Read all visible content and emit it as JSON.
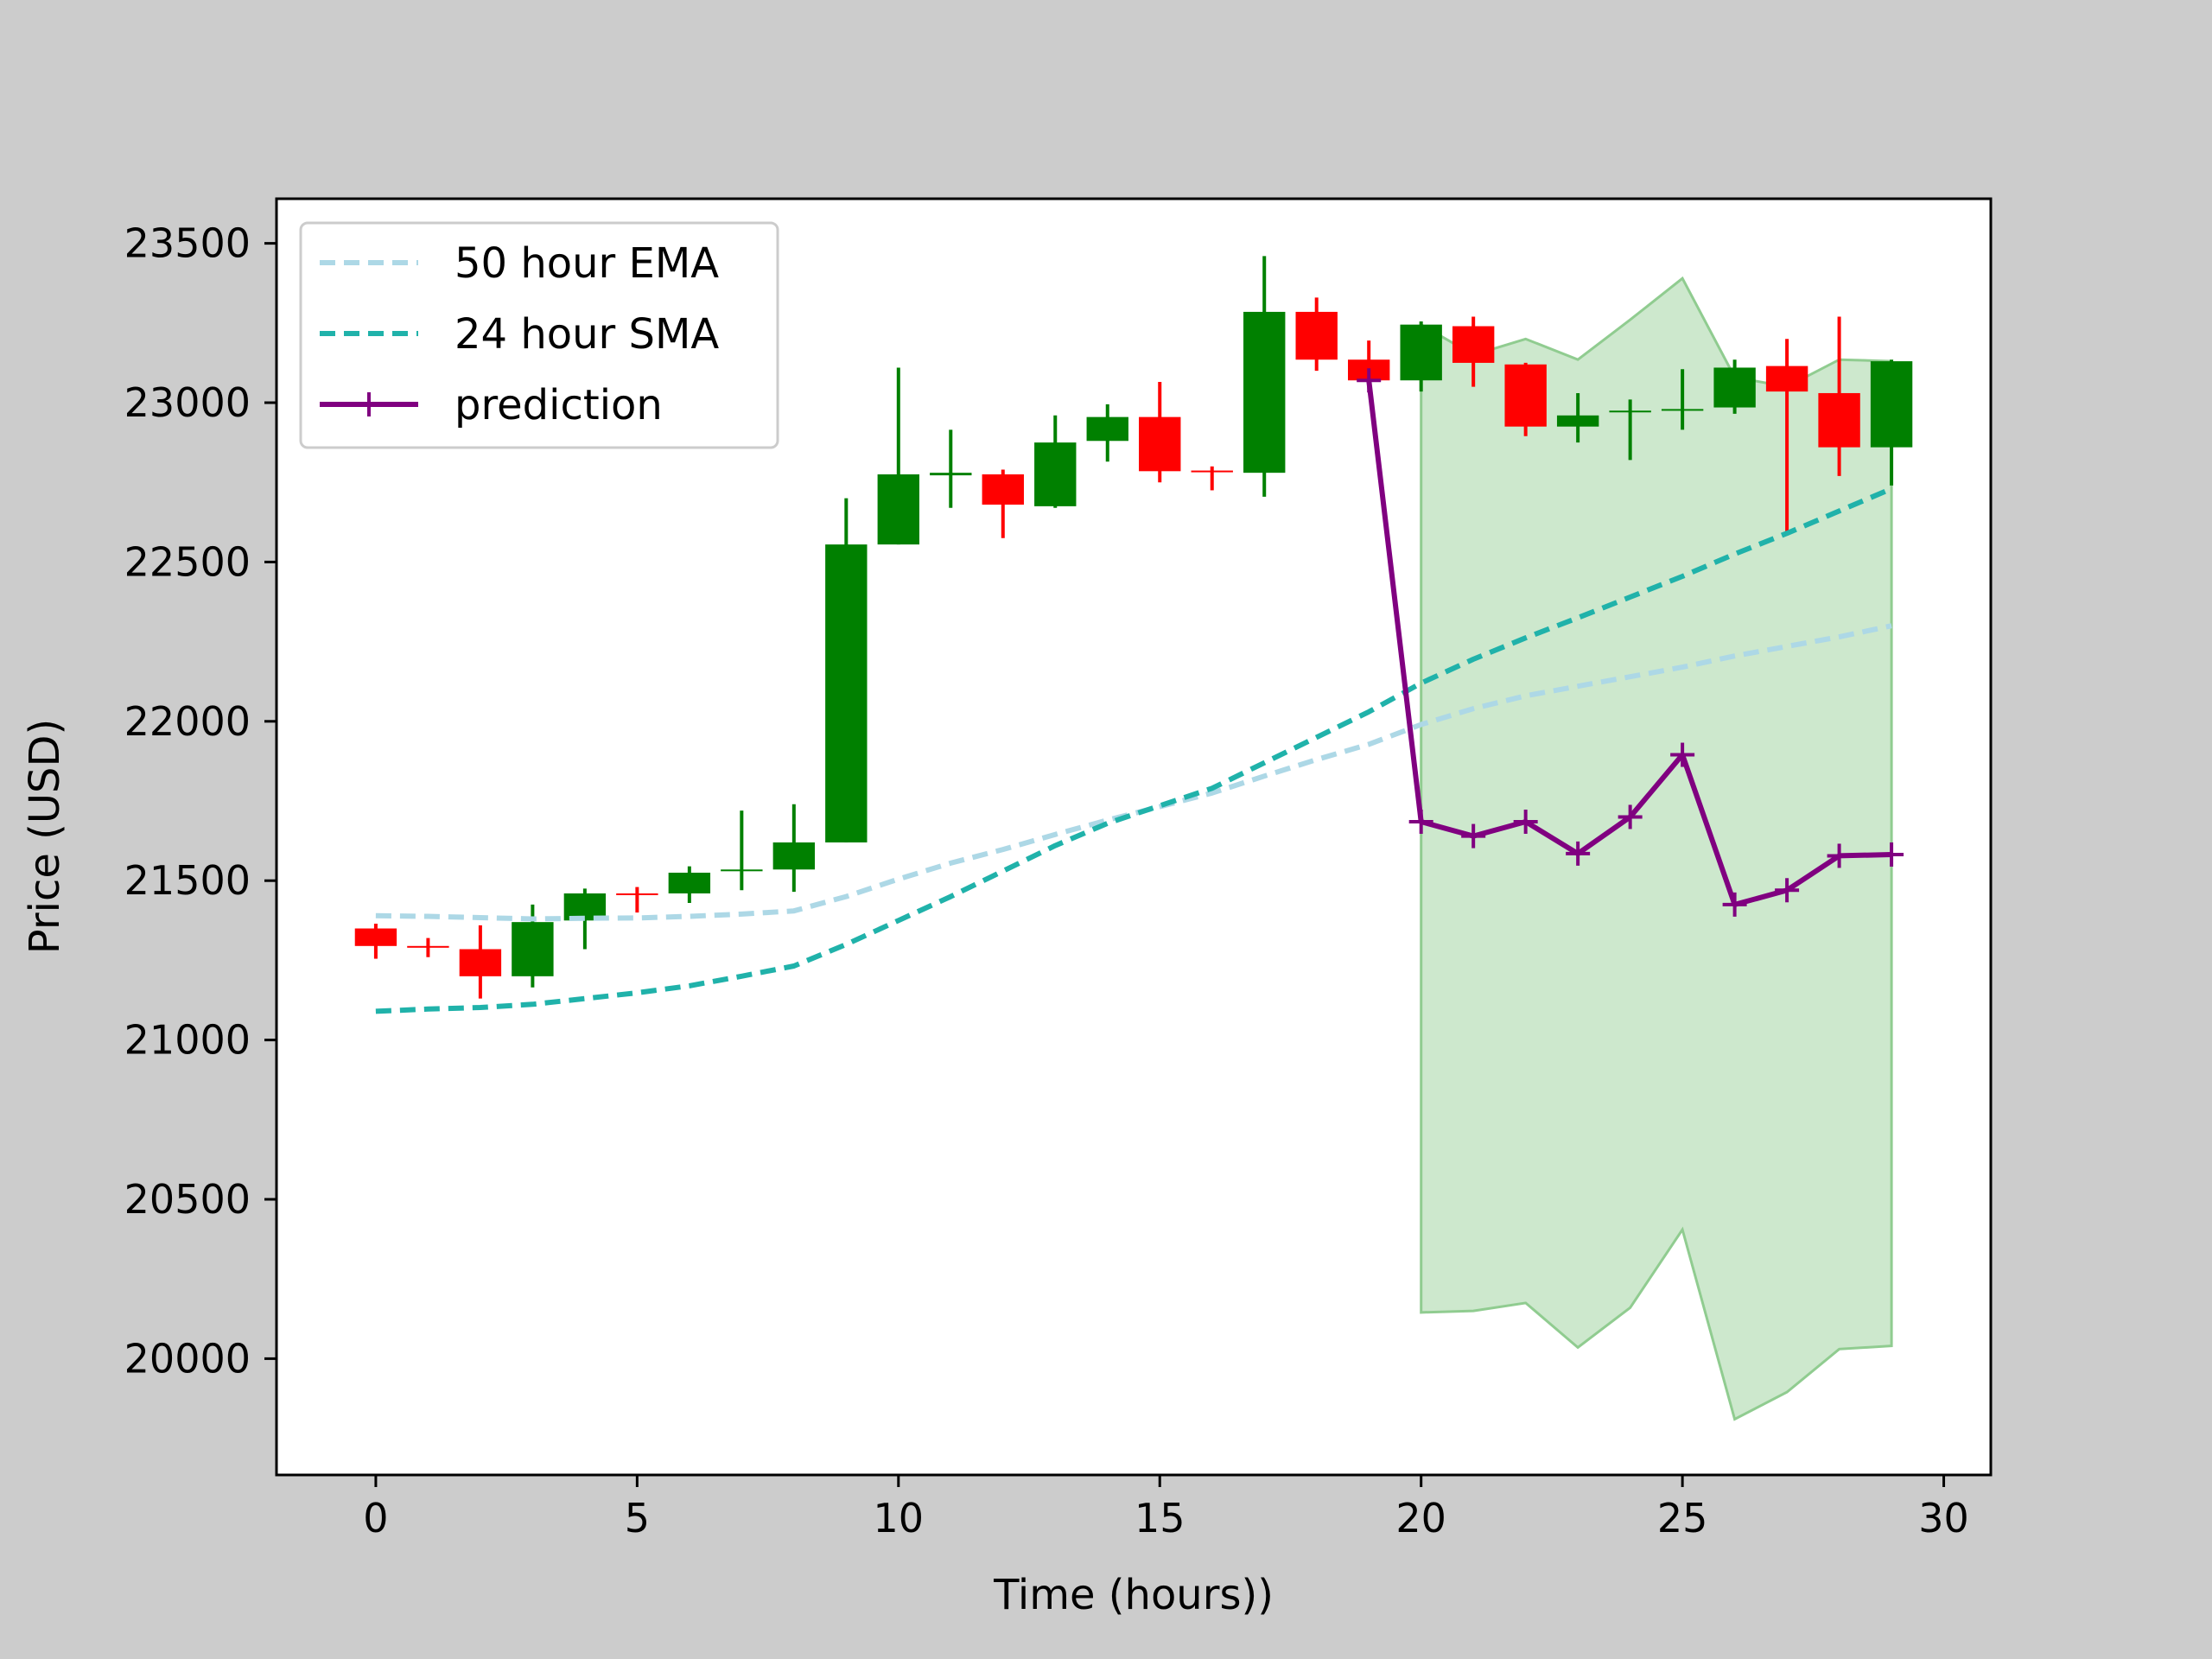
{
  "chart_data": {
    "type": "candlestick",
    "xlabel": "Time (hours))",
    "ylabel": "Price (USD)",
    "xlim": [
      -1.9,
      30.9
    ],
    "ylim": [
      19635,
      23640
    ],
    "xticks": [
      0,
      5,
      10,
      15,
      20,
      25,
      30
    ],
    "yticks": [
      20000,
      20500,
      21000,
      21500,
      22000,
      22500,
      23000,
      23500
    ],
    "legend_position": "upper-left",
    "grid": false,
    "colors": {
      "up": "#008000",
      "down": "#ff0000",
      "ema": "#add8e6",
      "sma": "#20b2aa",
      "prediction": "#800080",
      "band": "#90cc90"
    },
    "candles": [
      {
        "t": 0,
        "open": 21350,
        "high": 21365,
        "low": 21255,
        "close": 21295
      },
      {
        "t": 1,
        "open": 21295,
        "high": 21320,
        "low": 21260,
        "close": 21290
      },
      {
        "t": 2,
        "open": 21285,
        "high": 21360,
        "low": 21130,
        "close": 21200
      },
      {
        "t": 3,
        "open": 21200,
        "high": 21425,
        "low": 21165,
        "close": 21370
      },
      {
        "t": 4,
        "open": 21375,
        "high": 21475,
        "low": 21285,
        "close": 21460
      },
      {
        "t": 5,
        "open": 21460,
        "high": 21480,
        "low": 21400,
        "close": 21458
      },
      {
        "t": 6,
        "open": 21460,
        "high": 21545,
        "low": 21430,
        "close": 21525
      },
      {
        "t": 7,
        "open": 21530,
        "high": 21720,
        "low": 21470,
        "close": 21535
      },
      {
        "t": 8,
        "open": 21535,
        "high": 21740,
        "low": 21465,
        "close": 21620
      },
      {
        "t": 9,
        "open": 21620,
        "high": 22700,
        "low": 21620,
        "close": 22555
      },
      {
        "t": 10,
        "open": 22555,
        "high": 23110,
        "low": 22555,
        "close": 22775
      },
      {
        "t": 11,
        "open": 22772,
        "high": 22915,
        "low": 22670,
        "close": 22780
      },
      {
        "t": 12,
        "open": 22775,
        "high": 22790,
        "low": 22575,
        "close": 22680
      },
      {
        "t": 13,
        "open": 22675,
        "high": 22960,
        "low": 22670,
        "close": 22875
      },
      {
        "t": 14,
        "open": 22880,
        "high": 22995,
        "low": 22815,
        "close": 22955
      },
      {
        "t": 15,
        "open": 22955,
        "high": 23065,
        "low": 22750,
        "close": 22785
      },
      {
        "t": 16,
        "open": 22787,
        "high": 22800,
        "low": 22725,
        "close": 22783
      },
      {
        "t": 17,
        "open": 22780,
        "high": 23460,
        "low": 22705,
        "close": 23285
      },
      {
        "t": 18,
        "open": 23285,
        "high": 23330,
        "low": 23100,
        "close": 23135
      },
      {
        "t": 19,
        "open": 23135,
        "high": 23195,
        "low": 23065,
        "close": 23070
      },
      {
        "t": 20,
        "open": 23070,
        "high": 23255,
        "low": 23035,
        "close": 23245
      },
      {
        "t": 21,
        "open": 23240,
        "high": 23270,
        "low": 23050,
        "close": 23125
      },
      {
        "t": 22,
        "open": 23120,
        "high": 23125,
        "low": 22895,
        "close": 22925
      },
      {
        "t": 23,
        "open": 22925,
        "high": 23030,
        "low": 22875,
        "close": 22960
      },
      {
        "t": 24,
        "open": 22970,
        "high": 23010,
        "low": 22820,
        "close": 22975
      },
      {
        "t": 25,
        "open": 22975,
        "high": 23105,
        "low": 22915,
        "close": 22980
      },
      {
        "t": 26,
        "open": 22985,
        "high": 23135,
        "low": 22965,
        "close": 23110
      },
      {
        "t": 27,
        "open": 23115,
        "high": 23200,
        "low": 22590,
        "close": 23035
      },
      {
        "t": 28,
        "open": 23030,
        "high": 23270,
        "low": 22770,
        "close": 22860
      },
      {
        "t": 29,
        "open": 22860,
        "high": 23135,
        "low": 22740,
        "close": 23130
      }
    ],
    "series": [
      {
        "name": "50 hour EMA",
        "style": "dashed",
        "x": [
          0,
          1,
          2,
          3,
          4,
          5,
          6,
          7,
          8,
          9,
          10,
          11,
          12,
          13,
          14,
          15,
          16,
          17,
          18,
          19,
          20,
          21,
          22,
          23,
          24,
          25,
          26,
          27,
          28,
          29
        ],
        "values": [
          21390,
          21388,
          21384,
          21380,
          21382,
          21383,
          21388,
          21395,
          21405,
          21450,
          21505,
          21555,
          21598,
          21645,
          21690,
          21732,
          21775,
          21828,
          21880,
          21928,
          21990,
          22040,
          22080,
          22110,
          22140,
          22170,
          22205,
          22235,
          22265,
          22300
        ]
      },
      {
        "name": "24 hour SMA",
        "style": "dashed",
        "x": [
          0,
          1,
          2,
          3,
          4,
          5,
          6,
          7,
          8,
          9,
          10,
          11,
          12,
          13,
          14,
          15,
          16,
          17,
          18,
          19,
          20,
          21,
          22,
          23,
          24,
          25,
          26,
          27,
          28,
          29
        ],
        "values": [
          21090,
          21097,
          21102,
          21112,
          21130,
          21148,
          21170,
          21200,
          21232,
          21300,
          21375,
          21450,
          21530,
          21610,
          21680,
          21735,
          21790,
          21870,
          21950,
          22030,
          22120,
          22195,
          22262,
          22325,
          22390,
          22455,
          22525,
          22590,
          22660,
          22730
        ]
      },
      {
        "name": "prediction",
        "style": "solid",
        "marker": "+",
        "x": [
          19,
          20,
          21,
          22,
          23,
          24,
          25,
          26,
          27,
          28,
          29
        ],
        "values": [
          23070,
          21685,
          21640,
          21685,
          21585,
          21700,
          21895,
          21425,
          21470,
          21578,
          21582
        ]
      }
    ],
    "band": {
      "x": [
        20,
        21,
        22,
        23,
        24,
        25,
        26,
        27,
        28,
        29
      ],
      "upper": [
        23245,
        23150,
        23200,
        23135,
        23260,
        23390,
        23080,
        23050,
        23135,
        23130
      ],
      "lower": [
        20145,
        20150,
        20175,
        20035,
        20160,
        20405,
        19810,
        19895,
        20030,
        20040
      ]
    },
    "legend": [
      {
        "key": "ema",
        "label": "50 hour EMA"
      },
      {
        "key": "sma",
        "label": "24 hour SMA"
      },
      {
        "key": "prediction",
        "label": "prediction"
      }
    ]
  }
}
